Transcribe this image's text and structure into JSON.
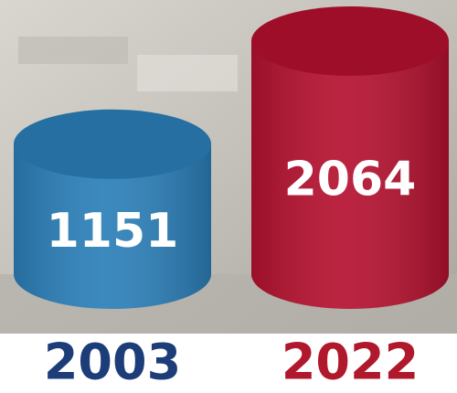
{
  "chart_data": {
    "type": "cylinder",
    "categories": [
      "2003",
      "2022"
    ],
    "values": [
      1151,
      2064
    ],
    "colors": [
      "#2b7fb9",
      "#b5112f"
    ],
    "category_colors": [
      "#1d3d78",
      "#b0182b"
    ]
  }
}
